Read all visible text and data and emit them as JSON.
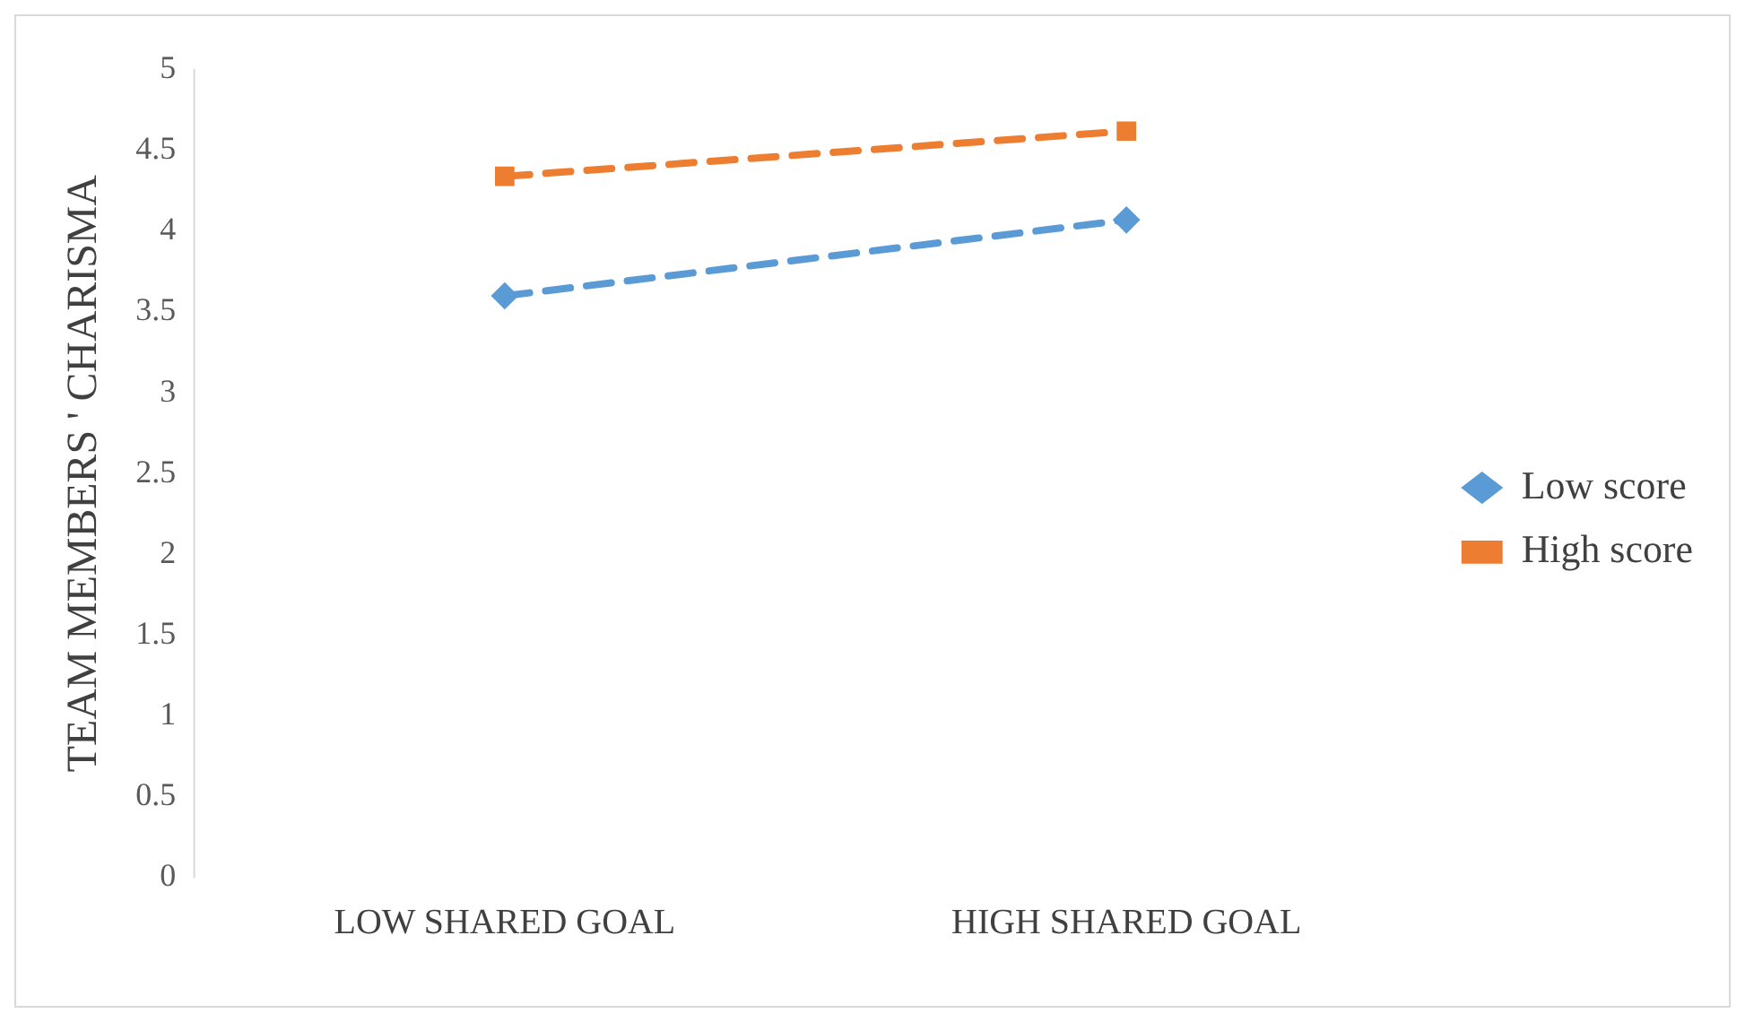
{
  "chart_data": {
    "type": "line",
    "ylabel": "TEAM MEMBERS ' CHARISMA",
    "categories": [
      "LOW SHARED GOAL",
      "HIGH SHARED GOAL"
    ],
    "series": [
      {
        "name": "Low score",
        "color": "#5b9bd5",
        "marker": "diamond",
        "values": [
          3.6,
          4.07
        ]
      },
      {
        "name": "High score",
        "color": "#ed7d31",
        "marker": "square",
        "values": [
          4.34,
          4.62
        ]
      }
    ],
    "ylim": [
      0,
      5
    ],
    "yticks": [
      0,
      0.5,
      1,
      1.5,
      2,
      2.5,
      3,
      3.5,
      4,
      4.5,
      5
    ],
    "grid": false,
    "legend": "right",
    "line_style": "dashed"
  }
}
